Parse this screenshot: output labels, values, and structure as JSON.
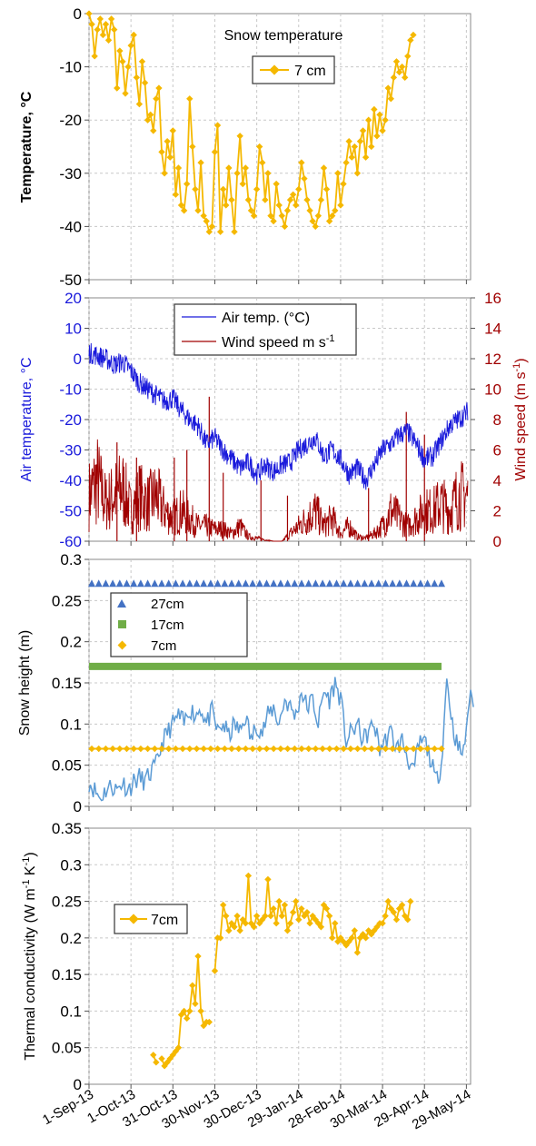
{
  "x_ticks": [
    "1-Sep-13",
    "1-Oct-13",
    "31-Oct-13",
    "30-Nov-13",
    "30-Dec-13",
    "29-Jan-14",
    "28-Feb-14",
    "30-Mar-14",
    "29-Apr-14",
    "29-May-14"
  ],
  "colors": {
    "gold": "#F5B800",
    "blue": "#1a1adb",
    "darkred": "#a00000",
    "steel": "#4472c4",
    "lightblue": "#5b9bd5",
    "green": "#70ad47",
    "grid": "#c8c8c8"
  },
  "chart_data": [
    {
      "type": "line",
      "title": "Snow temperature",
      "ylabel": "Temperature, °C",
      "ylim": [
        -50,
        0
      ],
      "yticks": [
        0,
        -10,
        -20,
        -30,
        -40,
        -50
      ],
      "legend": "top-right",
      "series": [
        {
          "name": "7 cm",
          "x_start": "2013-09-01",
          "step_days": 2,
          "values": [
            0,
            -2,
            -8,
            -3,
            -1,
            -4,
            -2,
            -5,
            -1,
            -3,
            -14,
            -7,
            -9,
            -15,
            -10,
            -6,
            -4,
            -12,
            -17,
            -9,
            -13,
            -20,
            -19,
            -22,
            -16,
            -14,
            -26,
            -30,
            -24,
            -27,
            -22,
            -34,
            -29,
            -36,
            -37,
            -32,
            -16,
            -25,
            -33,
            -37,
            -28,
            -38,
            -39,
            -41,
            -40,
            -26,
            -21,
            -41,
            -33,
            -36,
            -29,
            -35,
            -41,
            -30,
            -23,
            -32,
            -29,
            -35,
            -37,
            -38,
            -33,
            -25,
            -28,
            -35,
            -30,
            -38,
            -39,
            -32,
            -36,
            -38,
            -40,
            -37,
            -35,
            -34,
            -36,
            -33,
            -28,
            -31,
            -35,
            -37,
            -39,
            -40,
            -38,
            -35,
            -29,
            -33,
            -39,
            -38,
            -37,
            -30,
            -36,
            -32,
            -28,
            -24,
            -27,
            -25,
            -30,
            -24,
            -22,
            -27,
            -20,
            -25,
            -18,
            -23,
            -19,
            -22,
            -20,
            -14,
            -16,
            -12,
            -9,
            -11,
            -10,
            -12,
            -8,
            -5,
            -4
          ]
        }
      ]
    },
    {
      "type": "line",
      "ylabel": "Air temperature, °C",
      "y2label": "Wind speed (m s-1)",
      "ylim": [
        -60,
        20
      ],
      "yticks": [
        20,
        10,
        0,
        -10,
        -20,
        -30,
        -40,
        -50,
        -60
      ],
      "y2lim": [
        0,
        16
      ],
      "y2ticks": [
        16,
        14,
        12,
        10,
        8,
        6,
        4,
        2,
        0
      ],
      "legend": "top-center",
      "series": [
        {
          "name": "Air temp. (°C)",
          "axis": "left",
          "x_start": "2013-09-01",
          "step_days": 6,
          "values": [
            2,
            1,
            0,
            -2,
            -1,
            -4,
            -8,
            -10,
            -12,
            -14,
            -13,
            -17,
            -20,
            -22,
            -28,
            -26,
            -30,
            -33,
            -36,
            -34,
            -38,
            -35,
            -37,
            -35,
            -34,
            -30,
            -28,
            -26,
            -32,
            -30,
            -33,
            -38,
            -36,
            -40,
            -35,
            -30,
            -28,
            -25,
            -24,
            -28,
            -33,
            -32,
            -27,
            -22,
            -20,
            -18,
            -12,
            -8,
            -5,
            -3,
            -1,
            -2,
            -2
          ]
        },
        {
          "name": "Wind speed m s-1",
          "axis": "right",
          "x_start": "2013-09-01",
          "step_days": 6,
          "values": [
            3,
            4,
            2.5,
            3,
            3.5,
            2,
            3,
            2.5,
            3,
            2,
            1.5,
            2,
            1.5,
            1,
            1,
            0.8,
            0.8,
            0.5,
            1,
            0.3,
            0.2,
            0.1,
            0,
            0,
            0.5,
            1,
            1.5,
            2,
            1,
            1.5,
            0.5,
            1,
            0.3,
            0.2,
            0.5,
            1,
            2,
            1.5,
            1,
            1.5,
            2,
            2,
            2.5,
            2,
            3,
            3,
            2.5,
            2,
            3,
            3,
            2.5,
            2,
            2
          ]
        }
      ],
      "spikes": [
        {
          "x": "2013-09-21",
          "value": 6.5
        },
        {
          "x": "2013-10-05",
          "value": 5.5
        },
        {
          "x": "2013-11-01",
          "value": 5.5
        },
        {
          "x": "2013-11-10",
          "value": 6
        },
        {
          "x": "2013-11-26",
          "value": 9.5
        },
        {
          "x": "2013-12-06",
          "value": 4.5
        },
        {
          "x": "2014-01-02",
          "value": 4
        },
        {
          "x": "2014-01-21",
          "value": 3
        },
        {
          "x": "2014-03-20",
          "value": 3.5
        },
        {
          "x": "2014-04-16",
          "value": 8.5
        },
        {
          "x": "2014-04-29",
          "value": 7
        }
      ]
    },
    {
      "type": "scatter",
      "ylabel": "Snow height (m)",
      "ylim": [
        0,
        0.3
      ],
      "yticks": [
        0.3,
        0.25,
        0.2,
        0.15,
        0.1,
        0.05,
        0
      ],
      "legend": "top-left",
      "series": [
        {
          "name": "27cm",
          "value": 0.27
        },
        {
          "name": "17cm",
          "value": 0.17
        },
        {
          "name": "7cm",
          "value": 0.07
        }
      ],
      "snow_surface": {
        "x_start": "2013-09-01",
        "step_days": 4,
        "values": [
          0.03,
          0.02,
          0.01,
          0.02,
          0.025,
          0.02,
          0.03,
          0.02,
          0.03,
          0.035,
          0.03,
          0.04,
          0.05,
          0.075,
          0.09,
          0.1,
          0.11,
          0.1,
          0.12,
          0.11,
          0.12,
          0.1,
          0.115,
          0.09,
          0.1,
          0.085,
          0.1,
          0.09,
          0.11,
          0.08,
          0.1,
          0.09,
          0.11,
          0.12,
          0.1,
          0.13,
          0.12,
          0.11,
          0.14,
          0.12,
          0.13,
          0.1,
          0.14,
          0.13,
          0.15,
          0.13,
          0.08,
          0.09,
          0.1,
          0.08,
          0.09,
          0.1,
          0.07,
          0.08,
          0.09,
          0.07,
          0.08,
          0.06,
          0.04,
          0.075,
          0.08,
          0.06,
          0.03,
          0.05,
          0.155,
          0.1,
          0.07,
          0.065,
          0.13
        ]
      }
    },
    {
      "type": "line",
      "ylabel": "Thermal conductivity (W m-1 K-1)",
      "ylim": [
        0,
        0.35
      ],
      "yticks": [
        0.35,
        0.3,
        0.25,
        0.2,
        0.15,
        0.1,
        0.05,
        0
      ],
      "legend": "left",
      "series": [
        {
          "name": "7cm",
          "x_start": "2013-10-17",
          "step_days": 2,
          "values": [
            0.04,
            0.03,
            null,
            0.035,
            0.025,
            0.03,
            0.035,
            0.04,
            0.045,
            0.05,
            0.095,
            0.1,
            0.09,
            0.1,
            0.135,
            0.11,
            0.175,
            0.1,
            0.08,
            0.085,
            0.085,
            null,
            0.155,
            0.2,
            0.2,
            0.245,
            0.23,
            0.21,
            0.22,
            0.215,
            0.23,
            0.21,
            0.225,
            0.22,
            0.285,
            0.22,
            0.215,
            0.23,
            0.22,
            0.225,
            0.23,
            0.28,
            0.23,
            0.24,
            0.22,
            0.25,
            0.23,
            0.245,
            0.21,
            0.22,
            0.235,
            0.25,
            0.225,
            0.24,
            0.23,
            0.235,
            0.22,
            0.23,
            0.225,
            0.22,
            0.215,
            0.245,
            0.24,
            0.23,
            0.2,
            0.22,
            0.195,
            0.2,
            0.195,
            0.19,
            0.195,
            0.2,
            0.21,
            0.18,
            0.2,
            0.205,
            0.2,
            0.21,
            0.205,
            0.21,
            0.215,
            0.22,
            0.22,
            0.23,
            0.25,
            0.24,
            0.235,
            0.225,
            0.24,
            0.245,
            0.23,
            0.225,
            0.25
          ]
        }
      ]
    }
  ]
}
